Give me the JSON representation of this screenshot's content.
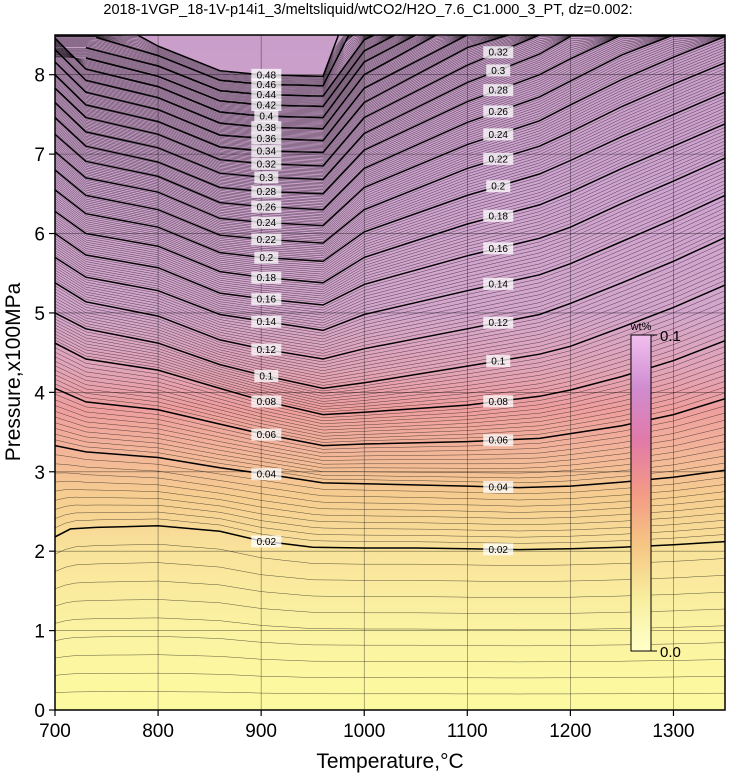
{
  "chart_data": {
    "type": "heatmap",
    "title": "2018-1VGP_18-1V-p14i1_3/meltsliquid/wtCO2/H2O_7.6_C1.000_3_PT, dz=0.002:",
    "xlabel": "Temperature,°C",
    "ylabel": "Pressure,x100MPa",
    "xlim": [
      700,
      1350
    ],
    "ylim": [
      0,
      8.5
    ],
    "x_ticks": [
      "700",
      "800",
      "900",
      "1000",
      "1100",
      "1200",
      "1300"
    ],
    "y_ticks": [
      "0",
      "1",
      "2",
      "3",
      "4",
      "5",
      "6",
      "7",
      "8"
    ],
    "grid": true,
    "contour_interval": 0.002,
    "major_contours": [
      {
        "level": 0.02,
        "label": "0.02",
        "points": [
          [
            700,
            2.18
          ],
          [
            715,
            2.28
          ],
          [
            740,
            2.3
          ],
          [
            800,
            2.32
          ],
          [
            860,
            2.25
          ],
          [
            900,
            2.13
          ],
          [
            950,
            2.05
          ],
          [
            1000,
            2.04
          ],
          [
            1050,
            2.04
          ],
          [
            1100,
            2.03
          ],
          [
            1150,
            2.02
          ],
          [
            1200,
            2.03
          ],
          [
            1250,
            2.05
          ],
          [
            1300,
            2.08
          ],
          [
            1350,
            2.12
          ]
        ]
      },
      {
        "level": 0.04,
        "label": "0.04",
        "points": [
          [
            700,
            3.33
          ],
          [
            730,
            3.25
          ],
          [
            800,
            3.18
          ],
          [
            860,
            3.05
          ],
          [
            900,
            2.98
          ],
          [
            960,
            2.86
          ],
          [
            1000,
            2.85
          ],
          [
            1100,
            2.82
          ],
          [
            1150,
            2.8
          ],
          [
            1200,
            2.82
          ],
          [
            1250,
            2.87
          ],
          [
            1300,
            2.93
          ],
          [
            1350,
            3.02
          ]
        ]
      },
      {
        "level": 0.06,
        "label": "0.06",
        "points": [
          [
            700,
            4.05
          ],
          [
            730,
            3.88
          ],
          [
            800,
            3.78
          ],
          [
            860,
            3.6
          ],
          [
            900,
            3.48
          ],
          [
            960,
            3.33
          ],
          [
            1000,
            3.35
          ],
          [
            1100,
            3.38
          ],
          [
            1170,
            3.42
          ],
          [
            1200,
            3.48
          ],
          [
            1250,
            3.58
          ],
          [
            1300,
            3.72
          ],
          [
            1350,
            3.92
          ]
        ]
      },
      {
        "level": 0.08,
        "label": "0.08",
        "points": [
          [
            700,
            4.62
          ],
          [
            730,
            4.42
          ],
          [
            800,
            4.28
          ],
          [
            860,
            4.05
          ],
          [
            900,
            3.9
          ],
          [
            960,
            3.72
          ],
          [
            1000,
            3.75
          ],
          [
            1100,
            3.84
          ],
          [
            1170,
            3.95
          ],
          [
            1200,
            4.03
          ],
          [
            1250,
            4.2
          ],
          [
            1300,
            4.4
          ],
          [
            1350,
            4.65
          ]
        ]
      },
      {
        "level": 0.1,
        "label": "0.1",
        "points": [
          [
            700,
            5.0
          ],
          [
            730,
            4.8
          ],
          [
            800,
            4.62
          ],
          [
            860,
            4.35
          ],
          [
            900,
            4.22
          ],
          [
            960,
            4.05
          ],
          [
            1000,
            4.12
          ],
          [
            1100,
            4.33
          ],
          [
            1170,
            4.48
          ],
          [
            1200,
            4.58
          ],
          [
            1250,
            4.82
          ],
          [
            1300,
            5.07
          ],
          [
            1350,
            5.35
          ]
        ]
      },
      {
        "level": 0.12,
        "label": "0.12",
        "points": [
          [
            700,
            5.38
          ],
          [
            730,
            5.14
          ],
          [
            800,
            4.96
          ],
          [
            860,
            4.66
          ],
          [
            900,
            4.55
          ],
          [
            960,
            4.42
          ],
          [
            1000,
            4.55
          ],
          [
            1100,
            4.8
          ],
          [
            1170,
            4.98
          ],
          [
            1200,
            5.12
          ],
          [
            1250,
            5.38
          ],
          [
            1300,
            5.65
          ],
          [
            1350,
            5.95
          ]
        ]
      },
      {
        "level": 0.14,
        "label": "0.14",
        "points": [
          [
            700,
            5.7
          ],
          [
            730,
            5.45
          ],
          [
            800,
            5.28
          ],
          [
            860,
            4.98
          ],
          [
            900,
            4.9
          ],
          [
            960,
            4.78
          ],
          [
            1000,
            4.98
          ],
          [
            1100,
            5.28
          ],
          [
            1170,
            5.48
          ],
          [
            1200,
            5.62
          ],
          [
            1250,
            5.9
          ],
          [
            1300,
            6.18
          ],
          [
            1350,
            6.48
          ]
        ]
      },
      {
        "level": 0.16,
        "label": "0.16",
        "points": [
          [
            700,
            6.0
          ],
          [
            730,
            5.73
          ],
          [
            800,
            5.57
          ],
          [
            860,
            5.25
          ],
          [
            900,
            5.18
          ],
          [
            960,
            5.1
          ],
          [
            1000,
            5.36
          ],
          [
            1100,
            5.72
          ],
          [
            1170,
            5.94
          ],
          [
            1200,
            6.08
          ],
          [
            1250,
            6.38
          ],
          [
            1300,
            6.66
          ],
          [
            1350,
            6.95
          ]
        ]
      },
      {
        "level": 0.18,
        "label": "0.18",
        "points": [
          [
            700,
            6.28
          ],
          [
            730,
            6.0
          ],
          [
            800,
            5.84
          ],
          [
            860,
            5.52
          ],
          [
            900,
            5.45
          ],
          [
            960,
            5.38
          ],
          [
            1000,
            5.7
          ],
          [
            1100,
            6.12
          ],
          [
            1170,
            6.36
          ],
          [
            1200,
            6.52
          ],
          [
            1250,
            6.82
          ],
          [
            1300,
            7.1
          ],
          [
            1350,
            7.38
          ]
        ]
      },
      {
        "level": 0.2,
        "label": "0.2",
        "points": [
          [
            700,
            6.55
          ],
          [
            730,
            6.25
          ],
          [
            800,
            6.08
          ],
          [
            860,
            5.76
          ],
          [
            900,
            5.7
          ],
          [
            960,
            5.65
          ],
          [
            1000,
            6.02
          ],
          [
            1100,
            6.48
          ],
          [
            1170,
            6.75
          ],
          [
            1200,
            6.92
          ],
          [
            1250,
            7.22
          ],
          [
            1300,
            7.5
          ],
          [
            1350,
            7.78
          ]
        ]
      },
      {
        "level": 0.22,
        "label": "0.22",
        "points": [
          [
            700,
            6.8
          ],
          [
            730,
            6.48
          ],
          [
            800,
            6.3
          ],
          [
            860,
            5.98
          ],
          [
            900,
            5.93
          ],
          [
            960,
            5.88
          ],
          [
            1000,
            6.3
          ],
          [
            1100,
            6.82
          ],
          [
            1170,
            7.1
          ],
          [
            1200,
            7.28
          ],
          [
            1250,
            7.6
          ],
          [
            1300,
            7.88
          ],
          [
            1350,
            8.15
          ]
        ]
      },
      {
        "level": 0.24,
        "label": "0.24",
        "points": [
          [
            700,
            7.03
          ],
          [
            730,
            6.7
          ],
          [
            800,
            6.52
          ],
          [
            860,
            6.19
          ],
          [
            900,
            6.14
          ],
          [
            960,
            6.1
          ],
          [
            1000,
            6.58
          ],
          [
            1100,
            7.12
          ],
          [
            1170,
            7.42
          ],
          [
            1200,
            7.62
          ],
          [
            1250,
            7.94
          ],
          [
            1300,
            8.22
          ],
          [
            1350,
            8.48
          ]
        ]
      },
      {
        "level": 0.26,
        "label": "0.26",
        "points": [
          [
            700,
            7.25
          ],
          [
            730,
            6.91
          ],
          [
            800,
            6.72
          ],
          [
            860,
            6.39
          ],
          [
            900,
            6.34
          ],
          [
            960,
            6.3
          ],
          [
            1000,
            6.82
          ],
          [
            1100,
            7.4
          ],
          [
            1170,
            7.72
          ],
          [
            1200,
            7.92
          ],
          [
            1250,
            8.25
          ],
          [
            1300,
            8.5
          ]
        ]
      },
      {
        "level": 0.28,
        "label": "0.28",
        "points": [
          [
            700,
            7.46
          ],
          [
            730,
            7.1
          ],
          [
            800,
            6.9
          ],
          [
            860,
            6.58
          ],
          [
            900,
            6.53
          ],
          [
            960,
            6.5
          ],
          [
            1000,
            7.05
          ],
          [
            1100,
            7.66
          ],
          [
            1170,
            8.0
          ],
          [
            1200,
            8.2
          ],
          [
            1250,
            8.5
          ]
        ]
      },
      {
        "level": 0.3,
        "label": "0.3",
        "points": [
          [
            700,
            7.65
          ],
          [
            730,
            7.28
          ],
          [
            800,
            7.08
          ],
          [
            860,
            6.76
          ],
          [
            900,
            6.71
          ],
          [
            960,
            6.68
          ],
          [
            1000,
            7.26
          ],
          [
            1100,
            7.9
          ],
          [
            1170,
            8.26
          ],
          [
            1200,
            8.48
          ]
        ]
      },
      {
        "level": 0.32,
        "label": "0.32",
        "points": [
          [
            700,
            7.83
          ],
          [
            730,
            7.46
          ],
          [
            800,
            7.25
          ],
          [
            860,
            6.93
          ],
          [
            900,
            6.88
          ],
          [
            960,
            6.85
          ],
          [
            1000,
            7.46
          ],
          [
            1100,
            8.12
          ],
          [
            1170,
            8.5
          ]
        ]
      },
      {
        "level": 0.34,
        "label": "0.34",
        "points": [
          [
            700,
            8.0
          ],
          [
            730,
            7.62
          ],
          [
            800,
            7.41
          ],
          [
            860,
            7.09
          ],
          [
            900,
            7.04
          ],
          [
            960,
            7.02
          ],
          [
            1000,
            7.65
          ],
          [
            1100,
            8.34
          ],
          [
            1140,
            8.5
          ]
        ]
      },
      {
        "level": 0.36,
        "label": "0.36",
        "points": [
          [
            700,
            8.16
          ],
          [
            730,
            7.78
          ],
          [
            800,
            7.56
          ],
          [
            860,
            7.24
          ],
          [
            900,
            7.2
          ],
          [
            960,
            7.17
          ],
          [
            1000,
            7.83
          ],
          [
            1100,
            8.5
          ]
        ]
      },
      {
        "level": 0.38,
        "label": "0.38",
        "points": [
          [
            700,
            8.32
          ],
          [
            730,
            7.93
          ],
          [
            800,
            7.71
          ],
          [
            860,
            7.39
          ],
          [
            900,
            7.34
          ],
          [
            960,
            7.32
          ],
          [
            1000,
            8.0
          ],
          [
            1070,
            8.5
          ]
        ]
      },
      {
        "level": 0.4,
        "label": "0.4",
        "points": [
          [
            700,
            8.46
          ],
          [
            730,
            8.07
          ],
          [
            800,
            7.85
          ],
          [
            860,
            7.53
          ],
          [
            900,
            7.48
          ],
          [
            960,
            7.46
          ],
          [
            1000,
            8.16
          ],
          [
            1050,
            8.5
          ]
        ]
      },
      {
        "level": 0.42,
        "label": "0.42",
        "points": [
          [
            730,
            8.21
          ],
          [
            800,
            7.98
          ],
          [
            860,
            7.67
          ],
          [
            900,
            7.62
          ],
          [
            960,
            7.6
          ],
          [
            1000,
            8.3
          ],
          [
            1030,
            8.5
          ]
        ]
      },
      {
        "level": 0.44,
        "label": "0.44",
        "points": [
          [
            730,
            8.34
          ],
          [
            800,
            8.11
          ],
          [
            860,
            7.8
          ],
          [
            900,
            7.75
          ],
          [
            960,
            7.73
          ],
          [
            1000,
            8.44
          ],
          [
            1010,
            8.5
          ]
        ]
      },
      {
        "level": 0.46,
        "label": "0.46",
        "points": [
          [
            740,
            8.47
          ],
          [
            800,
            8.24
          ],
          [
            860,
            7.93
          ],
          [
            900,
            7.88
          ],
          [
            960,
            7.86
          ],
          [
            985,
            8.5
          ]
        ]
      },
      {
        "level": 0.48,
        "label": "0.48",
        "points": [
          [
            780,
            8.5
          ],
          [
            800,
            8.36
          ],
          [
            860,
            8.05
          ],
          [
            900,
            8.0
          ],
          [
            960,
            7.98
          ],
          [
            975,
            8.5
          ]
        ]
      }
    ],
    "colorbar": {
      "label_min": "0.0",
      "label_max": "0.1",
      "unit": "wt%",
      "stops": [
        "#ffffc8",
        "#f8ee9e",
        "#f6c684",
        "#f39a86",
        "#e27aa8",
        "#cf8cd0",
        "#f2c0f0"
      ]
    },
    "background_stops": [
      {
        "p": 0.0,
        "color": "#fcfaa0"
      },
      {
        "p": 1.0,
        "color": "#fbf3a2"
      },
      {
        "p": 2.0,
        "color": "#f9e39b"
      },
      {
        "p": 2.7,
        "color": "#f6cd90"
      },
      {
        "p": 3.3,
        "color": "#f2b39a"
      },
      {
        "p": 3.8,
        "color": "#ee9e9e"
      },
      {
        "p": 4.3,
        "color": "#e2a4b8"
      },
      {
        "p": 5.0,
        "color": "#d4a6cc"
      },
      {
        "p": 6.5,
        "color": "#cfa4d0"
      },
      {
        "p": 8.5,
        "color": "#c99ec9"
      }
    ]
  }
}
